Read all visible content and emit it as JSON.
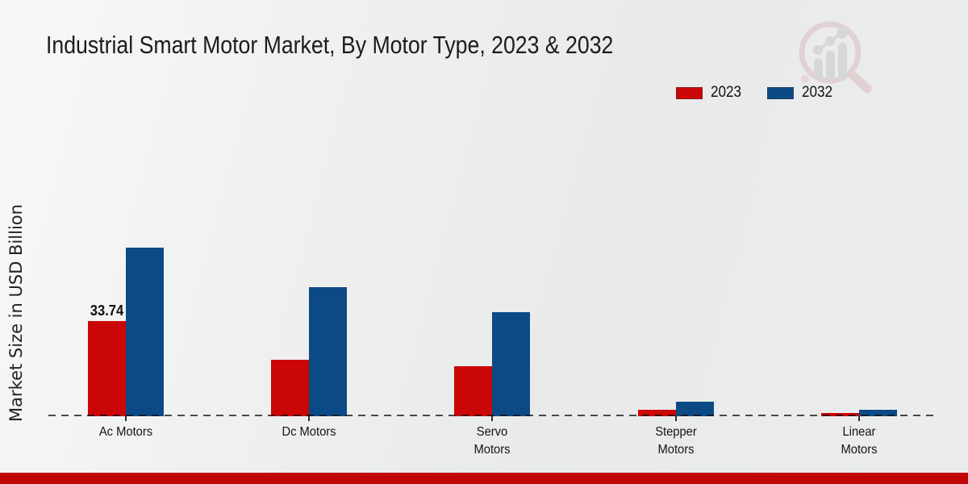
{
  "title": "Industrial Smart Motor Market, By Motor Type, 2023 & 2032",
  "ylabel": "Market Size in USD Billion",
  "legend": {
    "items": [
      {
        "label": "2023",
        "color": "#cb0606"
      },
      {
        "label": "2032",
        "color": "#0c4a86"
      }
    ]
  },
  "colors": {
    "series_2023": "#cb0606",
    "series_2032": "#0c4a86",
    "footer_band": "#c00303",
    "baseline": "#1a1a1a",
    "logo_pink": "#ddb9bb",
    "logo_gray": "#c7c7c7"
  },
  "logo_icon": "magnifier-bar-chart-logo",
  "chart_data": {
    "type": "bar",
    "categories": [
      "Ac Motors",
      "Dc Motors",
      "Servo Motors",
      "Stepper Motors",
      "Linear Motors"
    ],
    "category_label_lines": [
      [
        "Ac Motors"
      ],
      [
        "Dc Motors"
      ],
      [
        "Servo",
        "Motors"
      ],
      [
        "Stepper",
        "Motors"
      ],
      [
        "Linear",
        "Motors"
      ]
    ],
    "series": [
      {
        "name": "2023",
        "color": "#cb0606",
        "values": [
          33.74,
          20.0,
          17.7,
          2.3,
          1.1
        ]
      },
      {
        "name": "2032",
        "color": "#0c4a86",
        "values": [
          59.8,
          45.8,
          36.9,
          5.2,
          2.3
        ]
      }
    ],
    "data_labels": [
      {
        "category": "Ac Motors",
        "series": "2023",
        "text": "33.74"
      }
    ],
    "title": "Industrial Smart Motor Market, By Motor Type, 2023 & 2032",
    "xlabel": "",
    "ylabel": "Market Size in USD Billion",
    "ylim": [
      0,
      65
    ],
    "grid": false,
    "legend_position": "top-right",
    "baseline_style": "dashed"
  }
}
